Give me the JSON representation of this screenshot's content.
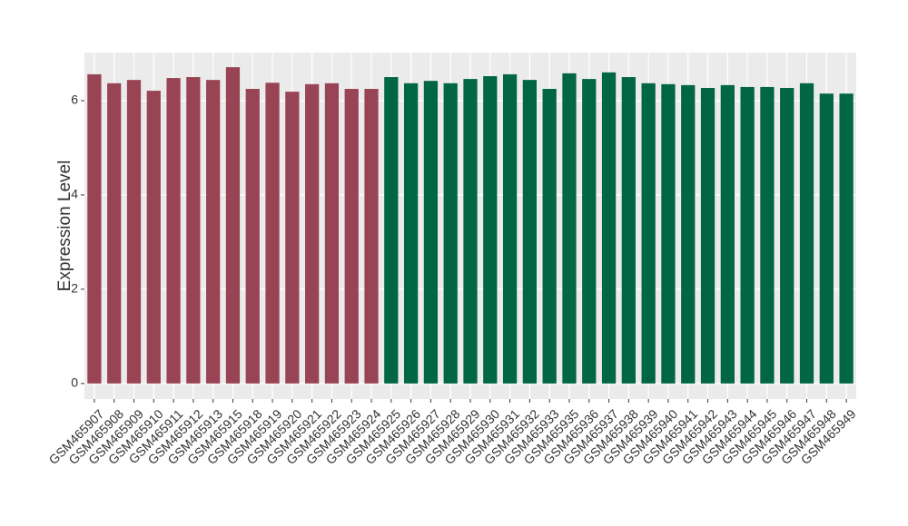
{
  "chart_data": {
    "type": "bar",
    "y_label": "Expression Level",
    "categories": [
      "GSM465907",
      "GSM465908",
      "GSM465909",
      "GSM465910",
      "GSM465911",
      "GSM465912",
      "GSM465913",
      "GSM465915",
      "GSM465918",
      "GSM465919",
      "GSM465920",
      "GSM465921",
      "GSM465922",
      "GSM465923",
      "GSM465924",
      "GSM465925",
      "GSM465926",
      "GSM465927",
      "GSM465928",
      "GSM465929",
      "GSM465930",
      "GSM465931",
      "GSM465932",
      "GSM465933",
      "GSM465935",
      "GSM465936",
      "GSM465937",
      "GSM465938",
      "GSM465939",
      "GSM465940",
      "GSM465941",
      "GSM465942",
      "GSM465943",
      "GSM465944",
      "GSM465945",
      "GSM465946",
      "GSM465947",
      "GSM465948",
      "GSM465949"
    ],
    "values": [
      6.56,
      6.37,
      6.44,
      6.21,
      6.48,
      6.5,
      6.44,
      6.71,
      6.25,
      6.38,
      6.19,
      6.35,
      6.37,
      6.25,
      6.25,
      6.5,
      6.37,
      6.42,
      6.37,
      6.46,
      6.52,
      6.56,
      6.44,
      6.25,
      6.58,
      6.46,
      6.6,
      6.5,
      6.37,
      6.35,
      6.33,
      6.27,
      6.33,
      6.29,
      6.29,
      6.27,
      6.37,
      6.15,
      6.15
    ],
    "colors": [
      "#994455",
      "#994455",
      "#994455",
      "#994455",
      "#994455",
      "#994455",
      "#994455",
      "#994455",
      "#994455",
      "#994455",
      "#994455",
      "#994455",
      "#994455",
      "#994455",
      "#994455",
      "#006644",
      "#006644",
      "#006644",
      "#006644",
      "#006644",
      "#006644",
      "#006644",
      "#006644",
      "#006644",
      "#006644",
      "#006644",
      "#006644",
      "#006644",
      "#006644",
      "#006644",
      "#006644",
      "#006644",
      "#006644",
      "#006644",
      "#006644",
      "#006644",
      "#006644",
      "#006644",
      "#006644"
    ],
    "ylim": [
      -0.33,
      7.02
    ],
    "yticks": [
      0,
      2,
      4,
      6
    ],
    "grid": true
  }
}
